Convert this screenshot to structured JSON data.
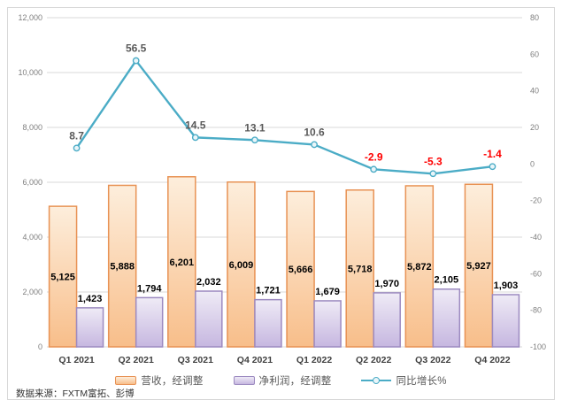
{
  "source_note": "数据来源：FXTM富拓、彭博",
  "chart_data": {
    "type": "combo",
    "categories": [
      "Q1 2021",
      "Q2 2021",
      "Q3 2021",
      "Q4 2021",
      "Q1 2022",
      "Q2 2022",
      "Q3 2022",
      "Q4 2022"
    ],
    "series": [
      {
        "name": "营收，经调整",
        "type": "bar",
        "axis": "left",
        "values": [
          5125,
          5888,
          6201,
          6009,
          5666,
          5718,
          5872,
          5927
        ],
        "data_labels": [
          "5,125",
          "5,888",
          "6,201",
          "6,009",
          "5,666",
          "5,718",
          "5,872",
          "5,927"
        ],
        "label_position": "center"
      },
      {
        "name": "净利润，经调整",
        "type": "bar",
        "axis": "left",
        "values": [
          1423,
          1794,
          2032,
          1721,
          1679,
          1970,
          2105,
          1903
        ],
        "data_labels": [
          "1,423",
          "1,794",
          "2,032",
          "1,721",
          "1,679",
          "1,970",
          "2,105",
          "1,903"
        ],
        "label_position": "outside-end"
      },
      {
        "name": "同比增长%",
        "type": "line",
        "axis": "right",
        "values": [
          8.7,
          56.5,
          14.5,
          13.1,
          10.6,
          -2.9,
          -5.3,
          -1.4
        ],
        "data_labels": [
          "8.7",
          "56.5",
          "14.5",
          "13.1",
          "10.6",
          "-2.9",
          "-5.3",
          "-1.4"
        ],
        "label_position": "above"
      }
    ],
    "left_axis": {
      "min": 0,
      "max": 12000,
      "step": 2000,
      "tick_labels": [
        "0",
        "2,000",
        "4,000",
        "6,000",
        "8,000",
        "10,000",
        "12,000"
      ]
    },
    "right_axis": {
      "min": -100,
      "max": 80,
      "step": 20,
      "tick_labels": [
        "-100",
        "-80",
        "-60",
        "-40",
        "-20",
        "0",
        "20",
        "40",
        "60",
        "80"
      ]
    },
    "grid": true,
    "legend_position": "bottom",
    "title": "",
    "colors": {
      "revenue_fill_top": "#FDEEDC",
      "revenue_fill_bottom": "#F8BE8A",
      "revenue_border": "#E89254",
      "profit_fill_top": "#EFEBF6",
      "profit_fill_bottom": "#C6B7E0",
      "profit_border": "#9C8AC0",
      "line": "#4BACC6",
      "marker_fill": "#EAF5F9",
      "gridline": "#D9D9D9",
      "axis_tick_text": "#808080",
      "x_label_text": "#3F3F3F",
      "bar_label_text": "#000000",
      "line_label_positive": "#595959",
      "line_label_negative": "#FF0000"
    }
  }
}
